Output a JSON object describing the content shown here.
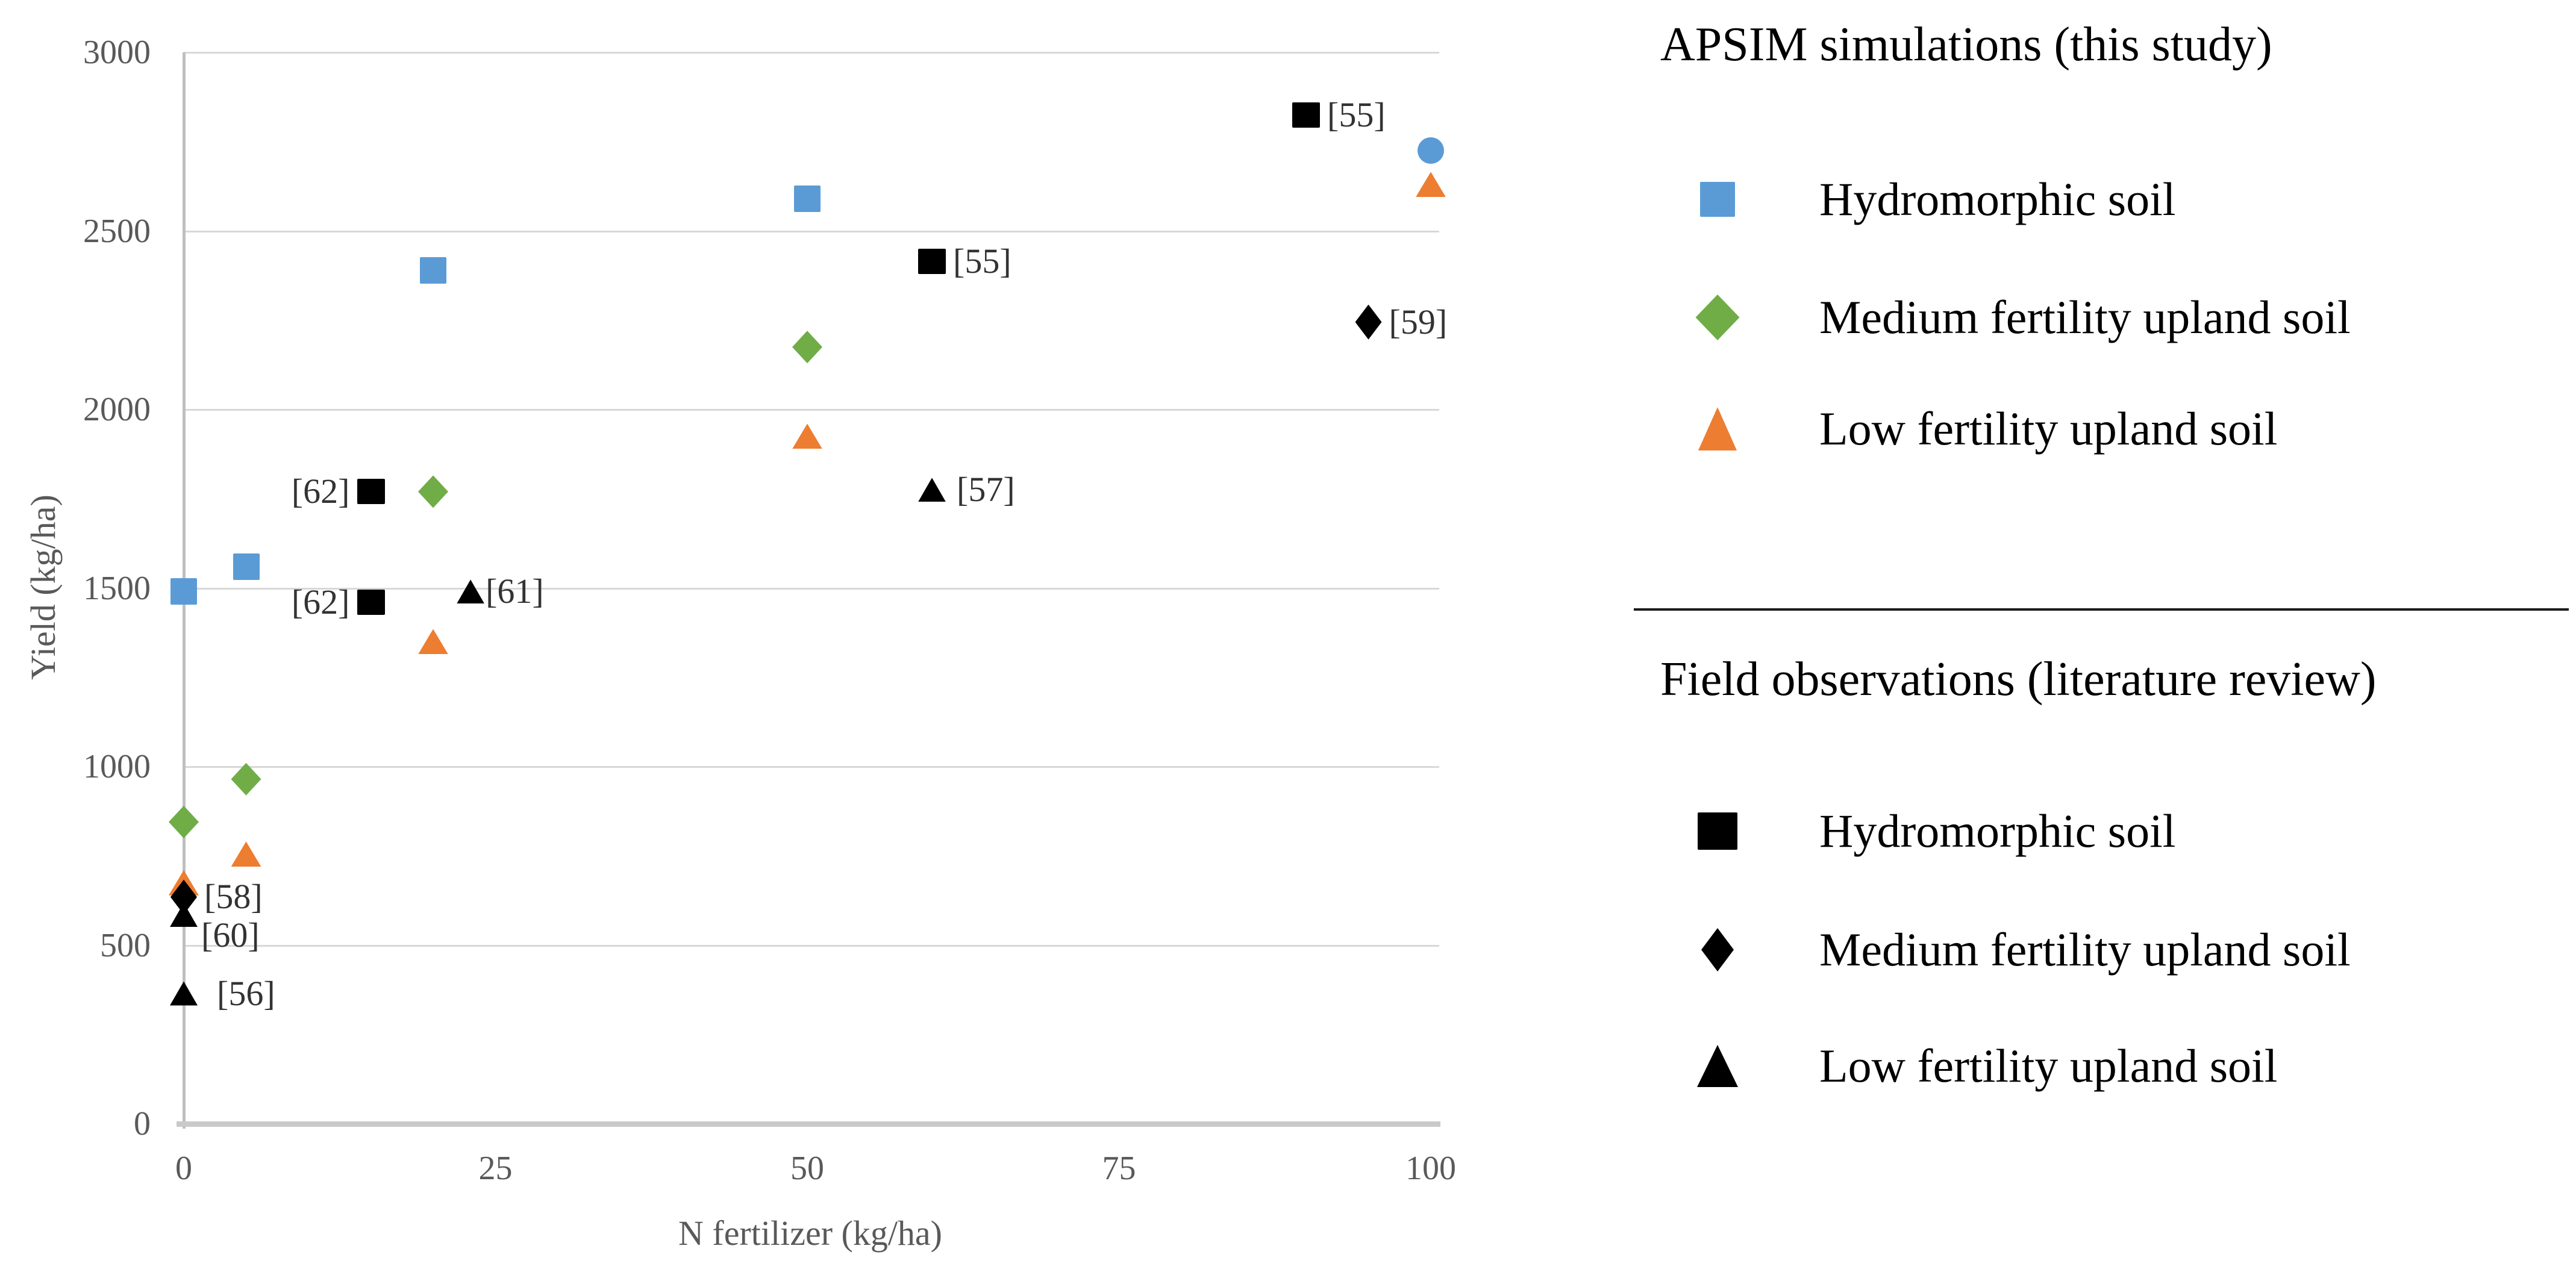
{
  "figure": {
    "background": "#ffffff",
    "tick_color": "#595959",
    "grid_color": "#d8d8d8",
    "axis_color": "#bfbfbf"
  },
  "chart_data": {
    "type": "scatter",
    "title": "",
    "xlabel": "N fertilizer (kg/ha)",
    "ylabel": "Yield (kg/ha)",
    "xlim": [
      0,
      100
    ],
    "ylim": [
      0,
      3000
    ],
    "x_ticks": [
      0,
      25,
      50,
      75,
      100
    ],
    "y_ticks": [
      0,
      500,
      1000,
      1500,
      2000,
      2500,
      3000
    ],
    "grid": "horizontal",
    "legend_position": "right",
    "series": [
      {
        "name": "APSIM Hydromorphic soil",
        "group": "APSIM simulations (this study)",
        "marker": "square",
        "color": "#5b9bd5",
        "points": [
          {
            "x": 0,
            "y": 1490
          },
          {
            "x": 5,
            "y": 1560
          },
          {
            "x": 20,
            "y": 2390
          },
          {
            "x": 50,
            "y": 2590
          },
          {
            "x": 100,
            "y": 2725,
            "marker": "circle"
          }
        ]
      },
      {
        "name": "APSIM Medium fertility upland soil",
        "group": "APSIM simulations (this study)",
        "marker": "diamond",
        "color": "#70ad47",
        "points": [
          {
            "x": 0,
            "y": 845
          },
          {
            "x": 5,
            "y": 965
          },
          {
            "x": 20,
            "y": 1770
          },
          {
            "x": 50,
            "y": 2175
          }
        ]
      },
      {
        "name": "APSIM Low fertility upland soil",
        "group": "APSIM simulations (this study)",
        "marker": "triangle",
        "color": "#ed7d31",
        "points": [
          {
            "x": 0,
            "y": 675
          },
          {
            "x": 5,
            "y": 755
          },
          {
            "x": 20,
            "y": 1350
          },
          {
            "x": 50,
            "y": 1925
          },
          {
            "x": 100,
            "y": 2630
          }
        ]
      },
      {
        "name": "Field observed Hydromorphic soil",
        "group": "Field observations (literature review)",
        "marker": "square",
        "color": "#000000",
        "points": [
          {
            "x": 15,
            "y": 1770,
            "label": "[62]",
            "side": "left"
          },
          {
            "x": 15,
            "y": 1460,
            "label": "[62]",
            "side": "left"
          },
          {
            "x": 60,
            "y": 2415,
            "label": "[55]",
            "side": "right"
          },
          {
            "x": 90,
            "y": 2825,
            "label": "[55]",
            "side": "right"
          }
        ]
      },
      {
        "name": "Field observed Medium fertility upland soil",
        "group": "Field observations (literature review)",
        "marker": "diamond",
        "color": "#000000",
        "points": [
          {
            "x": 0,
            "y": 635,
            "label": "[58]",
            "side": "right"
          },
          {
            "x": 95,
            "y": 2245,
            "label": "[59]",
            "side": "right"
          }
        ]
      },
      {
        "name": "Field observed Low fertility upland soil",
        "group": "Field observations (literature review)",
        "marker": "triangle",
        "color": "#000000",
        "points": [
          {
            "x": 0,
            "y": 585,
            "label": "[60]",
            "side": "right",
            "dx": -6,
            "dy": 34
          },
          {
            "x": 0,
            "y": 365,
            "label": "[56]",
            "side": "right",
            "dx": 20
          },
          {
            "x": 23,
            "y": 1490,
            "label": "[61]",
            "side": "right",
            "dx": -10
          },
          {
            "x": 60,
            "y": 1775,
            "label": "[57]",
            "side": "right",
            "dx": 6
          }
        ]
      }
    ]
  },
  "legend": {
    "apsim": {
      "title": "APSIM simulations (this study)",
      "items": [
        {
          "label": "Hydromorphic soil",
          "marker": "square",
          "color": "#5b9bd5"
        },
        {
          "label": "Medium fertility upland soil",
          "marker": "diamond",
          "color": "#70ad47"
        },
        {
          "label": "Low fertility upland soil",
          "marker": "triangle",
          "color": "#ed7d31"
        }
      ]
    },
    "field": {
      "title": "Field observations (literature review)",
      "items": [
        {
          "label": "Hydromorphic soil",
          "marker": "square",
          "color": "#000000"
        },
        {
          "label": "Medium fertility upland soil",
          "marker": "diamond",
          "color": "#000000"
        },
        {
          "label": "Low fertility upland soil",
          "marker": "triangle",
          "color": "#000000"
        }
      ]
    }
  }
}
